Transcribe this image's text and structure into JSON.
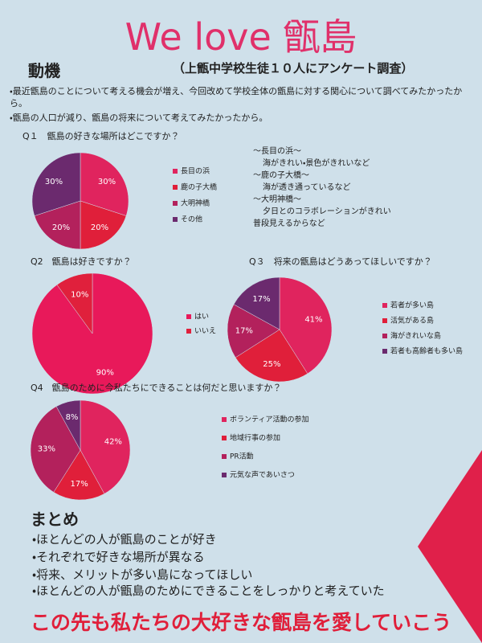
{
  "title": "We love 甑島",
  "motive": {
    "heading": "動機",
    "note": "（上甑中学校生徒１０人にアンケート調査）",
    "bullets": [
      "・最近甑島のことについて考える機会が増え、今回改めて学校全体の甑島に対する関心について調べてみたかったから。",
      "・甑島の人口が減り、甑島の将来について考えてみたかったから。"
    ]
  },
  "chart_data": [
    {
      "type": "pie",
      "title": "Q１　甑島の好きな場所はどこですか？",
      "categories": [
        "長目の浜",
        "鹿の子大橋",
        "大明神橋",
        "その他"
      ],
      "values": [
        30,
        20,
        20,
        30
      ],
      "value_labels": [
        "30%",
        "20%",
        "20%",
        "30%"
      ],
      "colors": [
        "#e0245e",
        "#e01f3a",
        "#b3215c",
        "#6b2a6e"
      ],
      "notes": [
        "～長目の浜～",
        "海がきれい・景色がきれいなど",
        "～鹿の子大橋～",
        "海が透き通っているなど",
        "～大明神橋～",
        "夕日とのコラボレーションがきれい",
        "普段見えるからなど"
      ]
    },
    {
      "type": "pie",
      "title": "Q2　甑島は好きですか？",
      "categories": [
        "はい",
        "いいえ"
      ],
      "values": [
        90,
        10
      ],
      "value_labels": [
        "90%",
        "10%"
      ],
      "colors": [
        "#e8195a",
        "#e0203c"
      ]
    },
    {
      "type": "pie",
      "title": "Q３　将来の甑島はどうあってほしいですか？",
      "categories": [
        "若者が多い島",
        "活気がある島",
        "海がきれいな島",
        "若者も高齢者も多い島"
      ],
      "values": [
        41,
        25,
        17,
        17
      ],
      "value_labels": [
        "41%",
        "25%",
        "17%",
        "17%"
      ],
      "colors": [
        "#e0245e",
        "#e01f3a",
        "#b3215c",
        "#6b2a6e"
      ]
    },
    {
      "type": "pie",
      "title": "Q4　甑島のために今私たちにできることは何だと思いますか？",
      "categories": [
        "ボランティア活動の参加",
        "地域行事の参加",
        "PR活動",
        "元気な声であいさつ"
      ],
      "values": [
        42,
        17,
        33,
        8
      ],
      "value_labels": [
        "42%",
        "17%",
        "33%",
        "8%"
      ],
      "colors": [
        "#e0245e",
        "#e01f3a",
        "#b3215c",
        "#6b2a6e"
      ]
    }
  ],
  "summary": {
    "heading": "まとめ",
    "bullets": [
      "・ほとんどの人が甑島のことが好き",
      "・それぞれで好きな場所が異なる",
      "・将来、メリットが多い島になってほしい",
      "・ほとんどの人が甑島のためにできることをしっかりと考えていた"
    ]
  },
  "closing": "この先も私たちの大好きな甑島を愛していこう"
}
